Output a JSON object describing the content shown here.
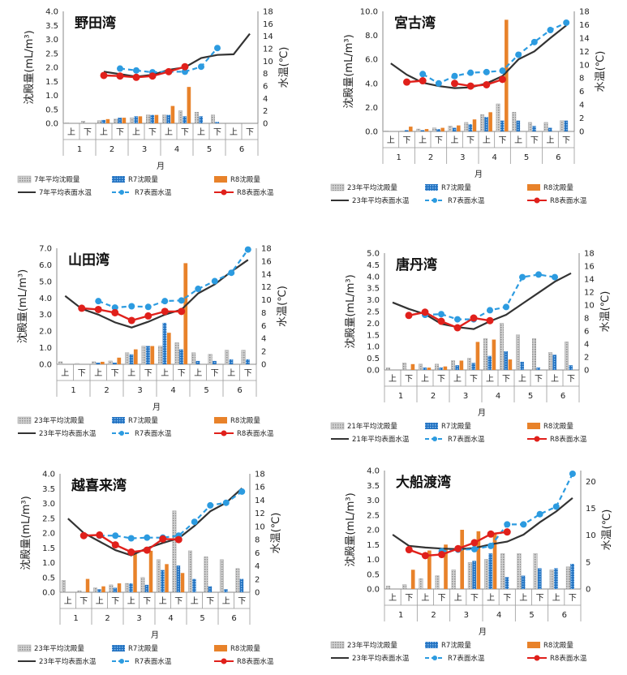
{
  "chart_data": [
    {
      "type": "bar",
      "title": "野田湾",
      "ylabel": "沈殿量(mL/m³)",
      "y2label": "水温(℃)",
      "xlabel": "月",
      "ylim": [
        0,
        4.0
      ],
      "y2lim": [
        0,
        18
      ],
      "yticks": [
        "0.0",
        "0.5",
        "1.0",
        "1.5",
        "2.0",
        "2.5",
        "3.0",
        "3.5",
        "4.0"
      ],
      "y2ticks": [
        "0",
        "2",
        "4",
        "6",
        "8",
        "10",
        "12",
        "14",
        "16",
        "18"
      ],
      "halves": [
        "上",
        "下",
        "上",
        "下",
        "上",
        "下",
        "上",
        "下",
        "上",
        "下",
        "上",
        "下"
      ],
      "months": [
        "1",
        "2",
        "3",
        "4",
        "5",
        "6"
      ],
      "legend": [
        "7年平均沈殿量",
        "R7沈殿量",
        "R8沈殿量",
        "7年平均表面水温",
        "R7表面水温",
        "R8表面水温"
      ],
      "series": [
        {
          "name": "7年平均沈殿量",
          "values": [
            0.02,
            0.08,
            0.1,
            0.15,
            0.2,
            0.3,
            0.3,
            0.45,
            0.4,
            0.3,
            0.0,
            0.0
          ]
        },
        {
          "name": "R7沈殿量",
          "values": [
            0.0,
            0.0,
            0.12,
            0.2,
            0.25,
            0.3,
            0.3,
            0.25,
            0.25,
            0.05,
            0.0,
            0.0
          ]
        },
        {
          "name": "R8沈殿量",
          "values": [
            0.0,
            0.0,
            0.15,
            0.2,
            0.25,
            0.3,
            0.62,
            1.3,
            null,
            null,
            null,
            null
          ]
        },
        {
          "name": "7年平均表面水温",
          "values": [
            null,
            null,
            8.3,
            7.9,
            7.5,
            7.8,
            8.6,
            9.0,
            10.5,
            11.0,
            11.1,
            14.4
          ]
        },
        {
          "name": "R7表面水温",
          "values": [
            null,
            null,
            null,
            8.8,
            8.5,
            8.2,
            8.3,
            8.3,
            9.1,
            12.1,
            null,
            null
          ]
        },
        {
          "name": "R8表面水温",
          "values": [
            null,
            null,
            7.7,
            7.6,
            7.4,
            7.6,
            8.3,
            9.1,
            null,
            null,
            null,
            null
          ]
        }
      ]
    },
    {
      "type": "bar",
      "title": "宮古湾",
      "ylabel": "沈殿量(mL/m³)",
      "y2label": "水温(℃)",
      "xlabel": "月",
      "ylim": [
        0,
        10.0
      ],
      "y2lim": [
        0,
        18
      ],
      "yticks": [
        "0.0",
        "2.0",
        "4.0",
        "6.0",
        "8.0",
        "10.0"
      ],
      "y2ticks": [
        "0",
        "2",
        "4",
        "6",
        "8",
        "10",
        "12",
        "14",
        "16",
        "18"
      ],
      "halves": [
        "上",
        "下",
        "上",
        "下",
        "上",
        "下",
        "上",
        "下",
        "上",
        "下",
        "上",
        "下"
      ],
      "months": [
        "1",
        "2",
        "3",
        "4",
        "5",
        "6"
      ],
      "legend": [
        "23年平均沈殿量",
        "R7沈殿量",
        "R8沈殿量",
        "23年平均表面水温",
        "R7表面水温",
        "R8表面水温"
      ],
      "series": [
        {
          "name": "23年平均沈殿量",
          "values": [
            0.05,
            0.05,
            0.2,
            0.3,
            0.45,
            0.75,
            1.4,
            2.3,
            1.6,
            0.75,
            0.75,
            0.9
          ]
        },
        {
          "name": "R7沈殿量",
          "values": [
            0.0,
            0.1,
            0.1,
            0.2,
            0.3,
            0.6,
            1.2,
            0.9,
            0.9,
            0.45,
            0.3,
            0.9
          ]
        },
        {
          "name": "R8沈殿量",
          "values": [
            0.0,
            0.4,
            0.2,
            0.3,
            0.5,
            1.0,
            1.6,
            9.3,
            null,
            null,
            null,
            null
          ]
        },
        {
          "name": "23年平均表面水温",
          "values": [
            10.2,
            8.5,
            7.3,
            6.8,
            6.5,
            6.6,
            7.2,
            8.3,
            10.8,
            12.0,
            14.0,
            15.9
          ]
        },
        {
          "name": "R7表面水温",
          "values": [
            null,
            null,
            8.6,
            7.2,
            8.3,
            8.8,
            8.9,
            9.1,
            11.5,
            13.4,
            15.2,
            16.3
          ]
        },
        {
          "name": "R8表面水温",
          "values": [
            null,
            7.4,
            7.6,
            null,
            7.2,
            6.8,
            7.0,
            7.8,
            null,
            null,
            null,
            null
          ]
        }
      ]
    },
    {
      "type": "bar",
      "title": "山田湾",
      "ylabel": "沈殿量(mL/m³)",
      "y2label": "水温(℃)",
      "xlabel": "月",
      "ylim": [
        0,
        7.0
      ],
      "y2lim": [
        0,
        18
      ],
      "yticks": [
        "0.0",
        "1.0",
        "2.0",
        "3.0",
        "4.0",
        "5.0",
        "6.0",
        "7.0"
      ],
      "y2ticks": [
        "0",
        "2",
        "4",
        "6",
        "8",
        "10",
        "12",
        "14",
        "16",
        "18"
      ],
      "halves": [
        "上",
        "下",
        "上",
        "下",
        "上",
        "下",
        "上",
        "下",
        "上",
        "下",
        "上",
        "下"
      ],
      "months": [
        "1",
        "2",
        "3",
        "4",
        "5",
        "6"
      ],
      "legend": [
        "23年平均沈殿量",
        "R7沈殿量",
        "R8沈殿量",
        "23年平均表面水温",
        "R7表面水温",
        "R8表面水温"
      ],
      "series": [
        {
          "name": "23年平均沈殿量",
          "values": [
            0.15,
            0.05,
            0.15,
            0.2,
            0.7,
            1.1,
            1.1,
            1.3,
            0.7,
            0.6,
            0.85,
            0.85
          ]
        },
        {
          "name": "R7沈殿量",
          "values": [
            0.0,
            0.0,
            0.1,
            0.1,
            0.6,
            1.1,
            2.5,
            0.9,
            0.2,
            0.2,
            0.3,
            0.3
          ]
        },
        {
          "name": "R8沈殿量",
          "values": [
            0.0,
            0.0,
            0.15,
            0.4,
            0.9,
            1.1,
            1.9,
            6.1,
            null,
            null,
            null,
            null
          ]
        },
        {
          "name": "23年平均表面水温",
          "values": [
            10.6,
            8.6,
            7.7,
            6.5,
            5.7,
            6.6,
            7.7,
            8.5,
            11.0,
            12.4,
            14.4,
            16.2
          ]
        },
        {
          "name": "R7表面水温",
          "values": [
            null,
            null,
            9.8,
            8.8,
            9.0,
            8.9,
            9.8,
            9.9,
            11.7,
            12.9,
            14.2,
            17.8
          ]
        },
        {
          "name": "R8表面水温",
          "values": [
            null,
            8.7,
            8.5,
            8.0,
            6.8,
            7.5,
            8.2,
            8.2,
            null,
            null,
            null,
            null
          ]
        }
      ]
    },
    {
      "type": "bar",
      "title": "唐丹湾",
      "ylabel": "沈殿量(mL/m³)",
      "y2label": "水温(℃)",
      "xlabel": "月",
      "ylim": [
        0,
        5.0
      ],
      "y2lim": [
        0,
        18
      ],
      "yticks": [
        "0.0",
        "0.5",
        "1.0",
        "1.5",
        "2.0",
        "2.5",
        "3.0",
        "3.5",
        "4.0",
        "4.5",
        "5.0"
      ],
      "y2ticks": [
        "0",
        "2",
        "4",
        "6",
        "8",
        "10",
        "12",
        "14",
        "16",
        "18"
      ],
      "halves": [
        "上",
        "下",
        "上",
        "下",
        "上",
        "下",
        "上",
        "下",
        "上",
        "下",
        "上",
        "下"
      ],
      "months": [
        "1",
        "2",
        "3",
        "4",
        "5",
        "6"
      ],
      "legend": [
        "21年平均沈殿量",
        "R7沈殿量",
        "R8沈殿量",
        "21年平均表面水温",
        "R7表面水温",
        "R8表面水温"
      ],
      "series": [
        {
          "name": "21年平均沈殿量",
          "values": [
            0.1,
            0.3,
            0.25,
            0.25,
            0.4,
            0.5,
            1.35,
            2.0,
            1.5,
            1.35,
            0.75,
            1.2
          ]
        },
        {
          "name": "R7沈殿量",
          "values": [
            0.0,
            0.0,
            0.1,
            0.1,
            0.2,
            0.3,
            0.6,
            0.8,
            0.35,
            0.1,
            0.65,
            0.2
          ]
        },
        {
          "name": "R8沈殿量",
          "values": [
            0.0,
            0.25,
            0.1,
            0.15,
            0.4,
            1.2,
            1.3,
            0.45,
            null,
            null,
            null,
            null
          ]
        },
        {
          "name": "21年平均表面水温",
          "values": [
            10.4,
            9.4,
            8.6,
            7.1,
            6.6,
            6.3,
            7.5,
            8.5,
            10.2,
            11.9,
            13.6,
            14.9
          ]
        },
        {
          "name": "R7表面水温",
          "values": [
            null,
            null,
            8.5,
            8.6,
            7.8,
            7.8,
            9.2,
            9.7,
            14.3,
            14.7,
            14.3,
            null
          ]
        },
        {
          "name": "R8表面水温",
          "values": [
            null,
            8.4,
            8.9,
            7.5,
            6.5,
            8.0,
            7.6,
            null,
            null,
            null,
            null,
            null
          ]
        }
      ]
    },
    {
      "type": "bar",
      "title": "越喜来湾",
      "ylabel": "沈殿量(mL/m³)",
      "y2label": "水温(℃)",
      "xlabel": "月",
      "ylim": [
        0,
        4.0
      ],
      "y2lim": [
        0,
        18
      ],
      "yticks": [
        "0.0",
        "0.5",
        "1.0",
        "1.5",
        "2.0",
        "2.5",
        "3.0",
        "3.5",
        "4.0"
      ],
      "y2ticks": [
        "0",
        "2",
        "4",
        "6",
        "8",
        "10",
        "12",
        "14",
        "16",
        "18"
      ],
      "halves": [
        "上",
        "下",
        "上",
        "下",
        "上",
        "下",
        "上",
        "下",
        "上",
        "下",
        "上",
        "下"
      ],
      "months": [
        "1",
        "2",
        "3",
        "4",
        "5",
        "6"
      ],
      "legend": [
        "23年平均沈殿量",
        "R7沈殿量",
        "R8沈殿量",
        "23年平均表面水温",
        "R7表面水温",
        "R8表面水温"
      ],
      "series": [
        {
          "name": "23年平均沈殿量",
          "values": [
            0.4,
            0.05,
            0.15,
            0.25,
            0.3,
            0.5,
            1.1,
            2.75,
            1.4,
            1.2,
            1.1,
            0.8
          ]
        },
        {
          "name": "R7沈殿量",
          "values": [
            0.0,
            0.0,
            0.1,
            0.15,
            0.3,
            0.25,
            0.75,
            0.9,
            0.45,
            0.2,
            0.1,
            0.45
          ]
        },
        {
          "name": "R8沈殿量",
          "values": [
            0.0,
            0.45,
            0.2,
            0.3,
            1.3,
            1.4,
            0.95,
            0.65,
            null,
            null,
            null,
            null
          ]
        },
        {
          "name": "23年平均表面水温",
          "values": [
            11.2,
            9.0,
            7.7,
            6.4,
            5.6,
            6.7,
            7.5,
            8.2,
            10.1,
            12.3,
            13.6,
            15.8
          ]
        },
        {
          "name": "R7表面水温",
          "values": [
            null,
            null,
            8.6,
            8.6,
            8.2,
            8.3,
            8.3,
            8.6,
            10.7,
            13.2,
            13.6,
            15.3
          ]
        },
        {
          "name": "R8表面水温",
          "values": [
            null,
            8.6,
            8.7,
            7.2,
            6.1,
            6.4,
            8.1,
            8.0,
            null,
            null,
            null,
            null
          ]
        }
      ]
    },
    {
      "type": "bar",
      "title": "大船渡湾",
      "ylabel": "沈殿量(mL/m³)",
      "y2label": "水温(℃)",
      "xlabel": "月",
      "ylim": [
        0,
        4.0
      ],
      "y2lim": [
        0,
        22
      ],
      "yticks": [
        "0.0",
        "0.5",
        "1.0",
        "1.5",
        "2.0",
        "2.5",
        "3.0",
        "3.5",
        "4.0"
      ],
      "y2ticks": [
        "0",
        "5",
        "10",
        "15",
        "20"
      ],
      "y2tickvals": [
        0,
        5,
        10,
        15,
        20
      ],
      "halves": [
        "上",
        "下",
        "上",
        "下",
        "上",
        "下",
        "上",
        "下",
        "上",
        "下",
        "上",
        "下"
      ],
      "months": [
        "1",
        "2",
        "3",
        "4",
        "5",
        "6"
      ],
      "legend": [
        "23年平均沈殿量",
        "R7沈殿量",
        "R8沈殿量",
        "23年平均表面水温",
        "R7表面水温",
        "R8表面水温"
      ],
      "series": [
        {
          "name": "23年平均沈殿量",
          "values": [
            0.1,
            0.15,
            0.35,
            0.45,
            0.65,
            0.9,
            1.0,
            1.2,
            1.2,
            1.2,
            0.65,
            0.75
          ]
        },
        {
          "name": "R7沈殿量",
          "values": [
            0.0,
            0.0,
            0.0,
            0.0,
            0.0,
            0.95,
            1.2,
            0.4,
            0.45,
            0.7,
            0.7,
            0.85
          ]
        },
        {
          "name": "R8沈殿量",
          "values": [
            0.0,
            0.65,
            1.3,
            1.5,
            2.0,
            1.95,
            1.9,
            null,
            null,
            null,
            null,
            null
          ]
        },
        {
          "name": "23年平均表面水温",
          "values": [
            10.1,
            8.0,
            7.7,
            7.5,
            7.4,
            7.6,
            8.3,
            8.8,
            10.1,
            12.4,
            14.4,
            16.9
          ]
        },
        {
          "name": "R7表面水温",
          "values": [
            null,
            null,
            null,
            7.0,
            7.3,
            7.4,
            8.0,
            12.0,
            12.0,
            13.9,
            15.3,
            21.4
          ]
        },
        {
          "name": "R8表面水温",
          "values": [
            null,
            7.3,
            6.2,
            6.4,
            7.5,
            8.6,
            10.2,
            10.6,
            null,
            null,
            null,
            null
          ]
        }
      ]
    }
  ]
}
